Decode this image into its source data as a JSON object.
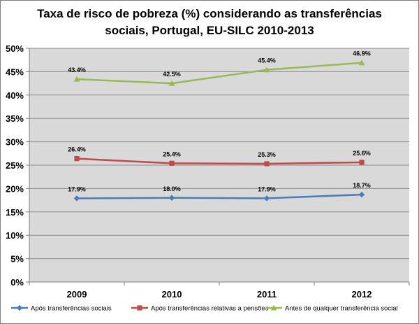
{
  "chart_data": {
    "type": "line",
    "title_lines": [
      "Taxa de risco de pobreza (%) considerando as transferências",
      "sociais, Portugal, EU-SILC 2010-2013"
    ],
    "categories": [
      "2009",
      "2010",
      "2011",
      "2012"
    ],
    "ylim": [
      0,
      50
    ],
    "yticks": [
      "0%",
      "5%",
      "10%",
      "15%",
      "20%",
      "25%",
      "30%",
      "35%",
      "40%",
      "45%",
      "50%"
    ],
    "grid": true,
    "legend_position": "bottom",
    "series": [
      {
        "name": "Após transferências sociais",
        "values": [
          17.9,
          18.0,
          17.9,
          18.7
        ],
        "labels": [
          "17.9%",
          "18.0%",
          "17.9%",
          "18.7%"
        ],
        "color": "#4a7ebb",
        "marker": "diamond"
      },
      {
        "name": "Após transferências relativas a pensões",
        "values": [
          26.4,
          25.4,
          25.3,
          25.6
        ],
        "labels": [
          "26.4%",
          "25.4%",
          "25.3%",
          "25.6%"
        ],
        "color": "#be4b48",
        "marker": "square"
      },
      {
        "name": "Antes de qualquer transferência social",
        "values": [
          43.4,
          42.5,
          45.4,
          46.9
        ],
        "labels": [
          "43.4%",
          "42.5%",
          "45.4%",
          "46.9%"
        ],
        "color": "#98b954",
        "marker": "triangle"
      }
    ],
    "colors": {
      "plot_background": "#d9d9d9",
      "gridline": "#8c8c8c"
    }
  }
}
